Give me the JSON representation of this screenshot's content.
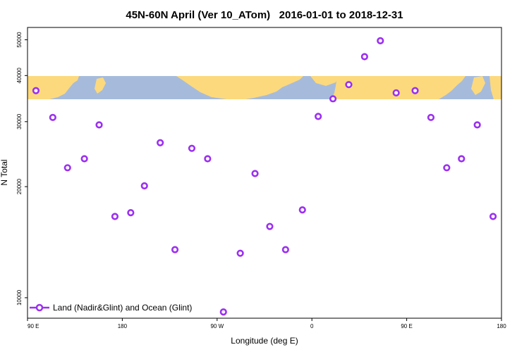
{
  "chart_data": {
    "type": "scatter",
    "title": "45N-60N April (Ver 10_ATom)   2016-01-01 to 2018-12-31",
    "xlabel": "Longitude (deg E)",
    "ylabel": "N Total",
    "x_scale": "linear",
    "y_scale": "log",
    "xlim": [
      90,
      540
    ],
    "ylim": [
      8800,
      54000
    ],
    "x_ticks": [
      {
        "value": 90,
        "label": "90 E"
      },
      {
        "value": 180,
        "label": "180"
      },
      {
        "value": 270,
        "label": "90 W"
      },
      {
        "value": 360,
        "label": "0"
      },
      {
        "value": 450,
        "label": "90 E"
      },
      {
        "value": 540,
        "label": "180"
      }
    ],
    "y_ticks": [
      {
        "value": 10000,
        "label": "10000"
      },
      {
        "value": 20000,
        "label": "20000"
      },
      {
        "value": 30000,
        "label": "30000"
      },
      {
        "value": 40000,
        "label": "40000"
      },
      {
        "value": 50000,
        "label": "50000"
      }
    ],
    "grid": false,
    "legend_position": "bottom-left",
    "map_band": {
      "present": true,
      "ocean_color": "#a6bbdc",
      "land_color": "#fcd97c"
    },
    "series": [
      {
        "name": "Land (Nadir&Glint) and Ocean (Glint)",
        "color": "#9b30f0",
        "marker": "open-circle",
        "x": [
          98,
          114,
          128,
          144,
          158,
          173,
          188,
          201,
          216,
          230,
          246,
          261,
          276,
          292,
          306,
          320,
          335,
          351,
          366,
          380,
          395,
          410,
          425,
          440,
          458,
          473,
          488,
          502,
          517,
          532
        ],
        "y": [
          36400,
          30800,
          22500,
          23800,
          29400,
          16600,
          17000,
          20100,
          26300,
          13500,
          25400,
          23800,
          9150,
          13200,
          21700,
          15600,
          13500,
          17300,
          31000,
          34600,
          37800,
          45000,
          49700,
          35900,
          36400,
          30800,
          22500,
          23800,
          29400,
          16600
        ]
      }
    ]
  }
}
